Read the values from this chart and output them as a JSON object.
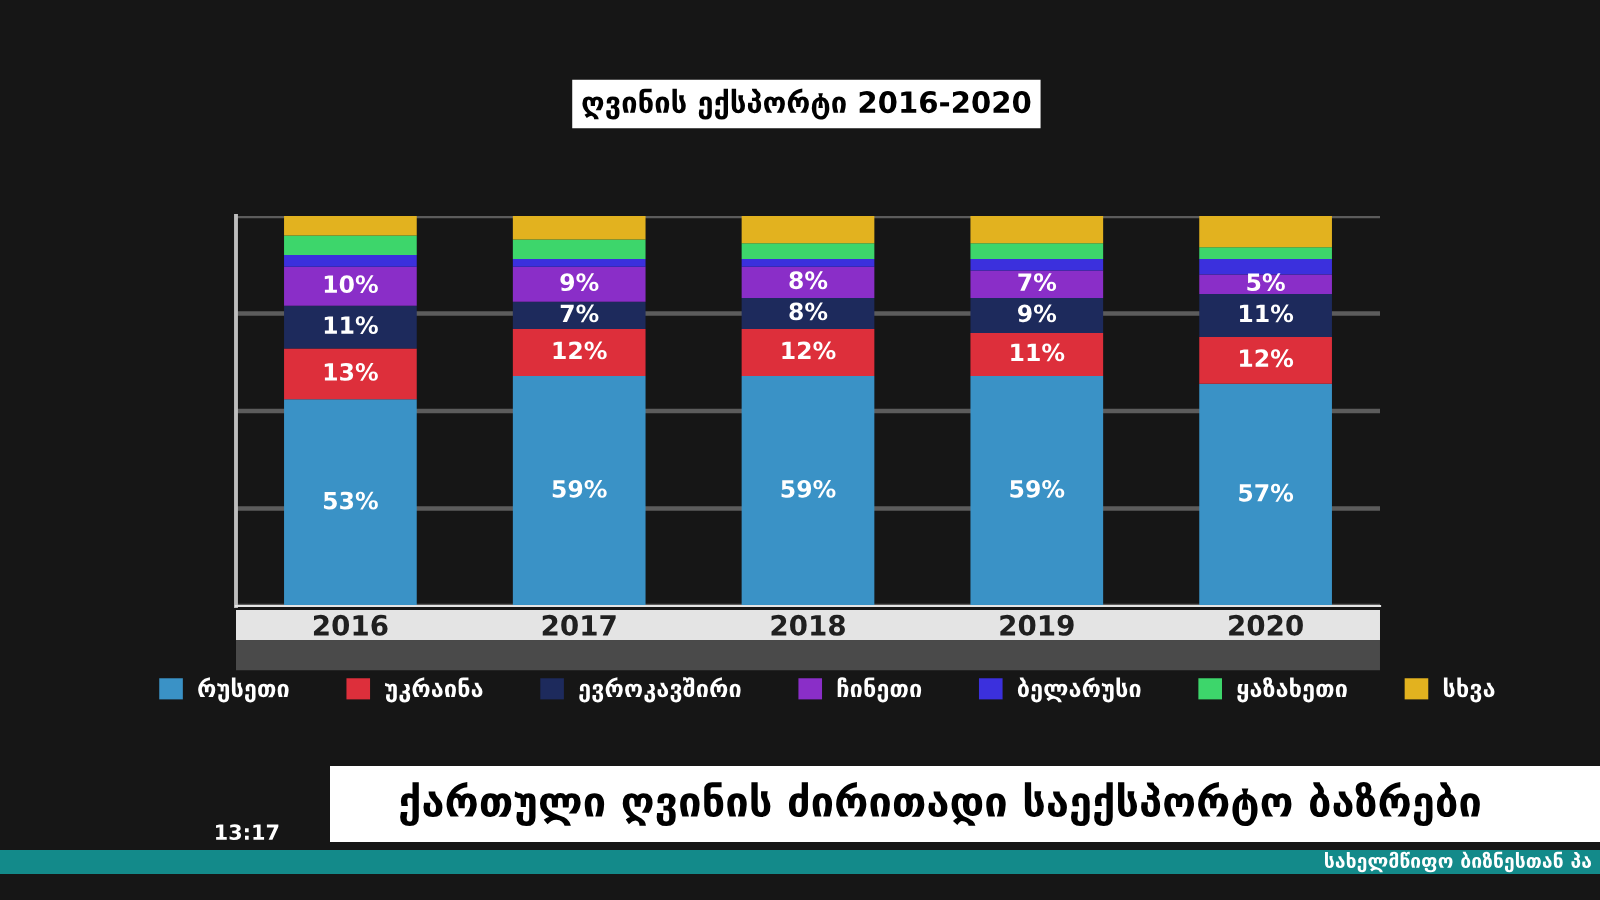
{
  "chart_data": {
    "type": "bar",
    "stacked": true,
    "title": "ღვინის ექსპორტი 2016-2020",
    "categories": [
      "2016",
      "2017",
      "2018",
      "2019",
      "2020"
    ],
    "series": [
      {
        "name": "რუსეთი",
        "color": "#3a92c6",
        "values": [
          53,
          59,
          59,
          59,
          57
        ],
        "value_labels": [
          "53%",
          "59%",
          "59%",
          "59%",
          "57%"
        ]
      },
      {
        "name": "უკრაინა",
        "color": "#dd2f3b",
        "values": [
          13,
          12,
          12,
          11,
          12
        ],
        "value_labels": [
          "13%",
          "12%",
          "12%",
          "11%",
          "12%"
        ]
      },
      {
        "name": "ევროკავშირი",
        "color": "#1d2a5c",
        "values": [
          11,
          7,
          8,
          9,
          11
        ],
        "value_labels": [
          "11%",
          "7%",
          "8%",
          "9%",
          "11%"
        ]
      },
      {
        "name": "ჩინეთი",
        "color": "#8a2ec8",
        "values": [
          10,
          9,
          8,
          7,
          5
        ],
        "value_labels": [
          "10%",
          "9%",
          "8%",
          "7%",
          "5%"
        ]
      },
      {
        "name": "ბელარუსი",
        "color": "#3b30dd",
        "values": [
          3,
          2,
          2,
          3,
          4
        ]
      },
      {
        "name": "ყაზახეთი",
        "color": "#3dd66b",
        "values": [
          5,
          5,
          4,
          4,
          3
        ]
      },
      {
        "name": "სხვა",
        "color": "#e2b21f",
        "values": [
          5,
          6,
          7,
          7,
          8
        ]
      }
    ],
    "ylim": [
      0,
      100
    ],
    "yticks": [
      {
        "value": 0,
        "label": null
      },
      {
        "value": 25,
        "label": null
      },
      {
        "value": 50,
        "label": null
      },
      {
        "value": 75,
        "label": null
      },
      {
        "value": 100,
        "label": null
      }
    ],
    "grid": "y",
    "tick_labels": "x",
    "legend": "bottom",
    "annotations": [
      "ქართული ღვინის ძირითადი საექსპორტო ბაზრები",
      "13:17",
      "სახელმწიფო ბიზნესთან პა"
    ]
  }
}
